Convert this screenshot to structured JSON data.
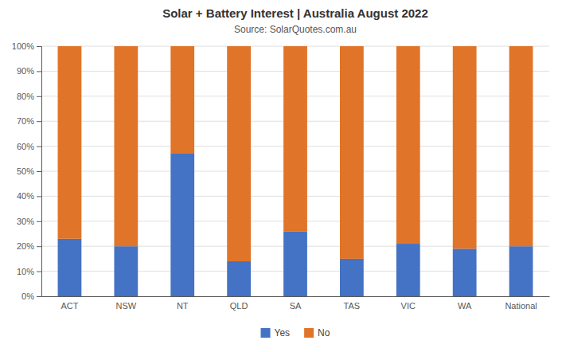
{
  "chart_data": {
    "type": "bar",
    "title": "Solar + Battery Interest  |  Australia August 2022",
    "subtitle": "Source: SolarQuotes.com.au",
    "categories": [
      "ACT",
      "NSW",
      "NT",
      "QLD",
      "SA",
      "TAS",
      "VIC",
      "WA",
      "National"
    ],
    "series": [
      {
        "name": "Yes",
        "color": "#4472c4",
        "values": [
          23,
          20,
          57,
          14,
          26,
          15,
          21,
          19,
          20
        ]
      },
      {
        "name": "No",
        "color": "#e07428",
        "values": [
          77,
          80,
          43,
          86,
          74,
          85,
          79,
          81,
          80
        ]
      }
    ],
    "stacked": true,
    "ylim": [
      0,
      100
    ],
    "yticks": [
      {
        "value": 0,
        "label": "0%"
      },
      {
        "value": 10,
        "label": "10%"
      },
      {
        "value": 20,
        "label": "20%"
      },
      {
        "value": 30,
        "label": "30%"
      },
      {
        "value": 40,
        "label": "40%"
      },
      {
        "value": 50,
        "label": "50%"
      },
      {
        "value": 60,
        "label": "60%"
      },
      {
        "value": 70,
        "label": "70%"
      },
      {
        "value": 80,
        "label": "80%"
      },
      {
        "value": 90,
        "label": "90%"
      },
      {
        "value": 100,
        "label": "100%"
      }
    ],
    "grid": true,
    "legend": "bottom"
  }
}
